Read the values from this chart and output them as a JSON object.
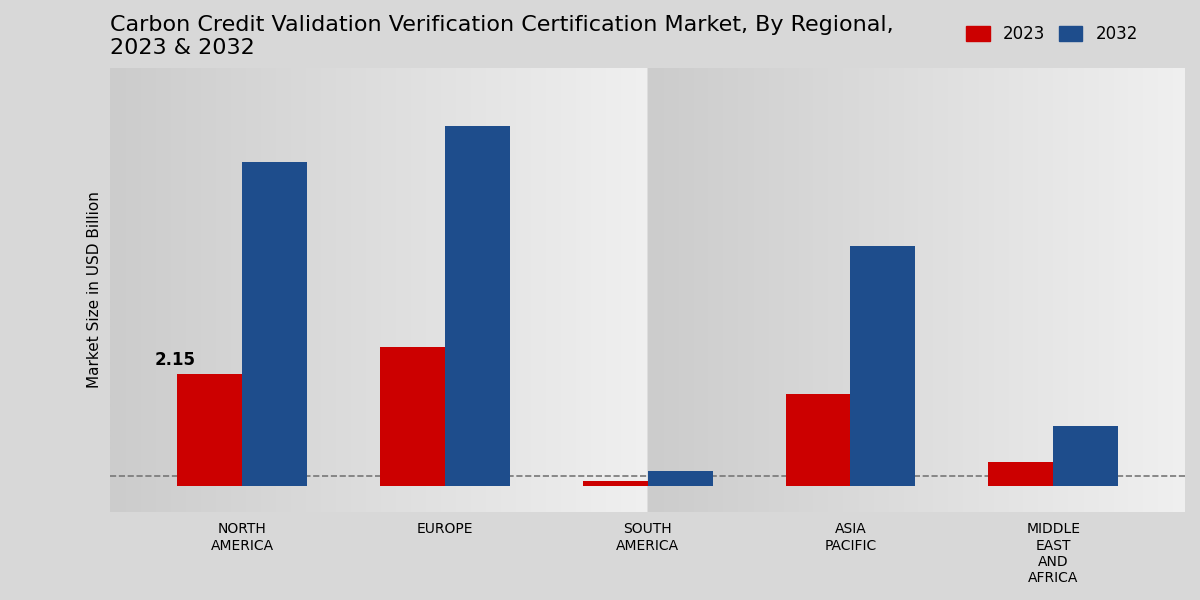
{
  "title": "Carbon Credit Validation Verification Certification Market, By Regional,\n2023 & 2032",
  "ylabel": "Market Size in USD Billion",
  "categories": [
    "NORTH\nAMERICA",
    "EUROPE",
    "SOUTH\nAMERICA",
    "ASIA\nPACIFIC",
    "MIDDLE\nEAST\nAND\nAFRICA"
  ],
  "values_2023": [
    2.15,
    2.65,
    0.1,
    1.75,
    0.45
  ],
  "values_2032": [
    6.2,
    6.9,
    0.28,
    4.6,
    1.15
  ],
  "color_2023": "#cc0000",
  "color_2032": "#1e4d8c",
  "annotation_text": "2.15",
  "annotation_index": 0,
  "background_color_top": "#d4d4d4",
  "background_color_bottom": "#f0f0f0",
  "bar_width": 0.32,
  "dashed_line_y": 0.18,
  "ylim": [
    -0.5,
    8.0
  ],
  "title_fontsize": 16,
  "label_fontsize": 11,
  "tick_fontsize": 10,
  "legend_fontsize": 12
}
